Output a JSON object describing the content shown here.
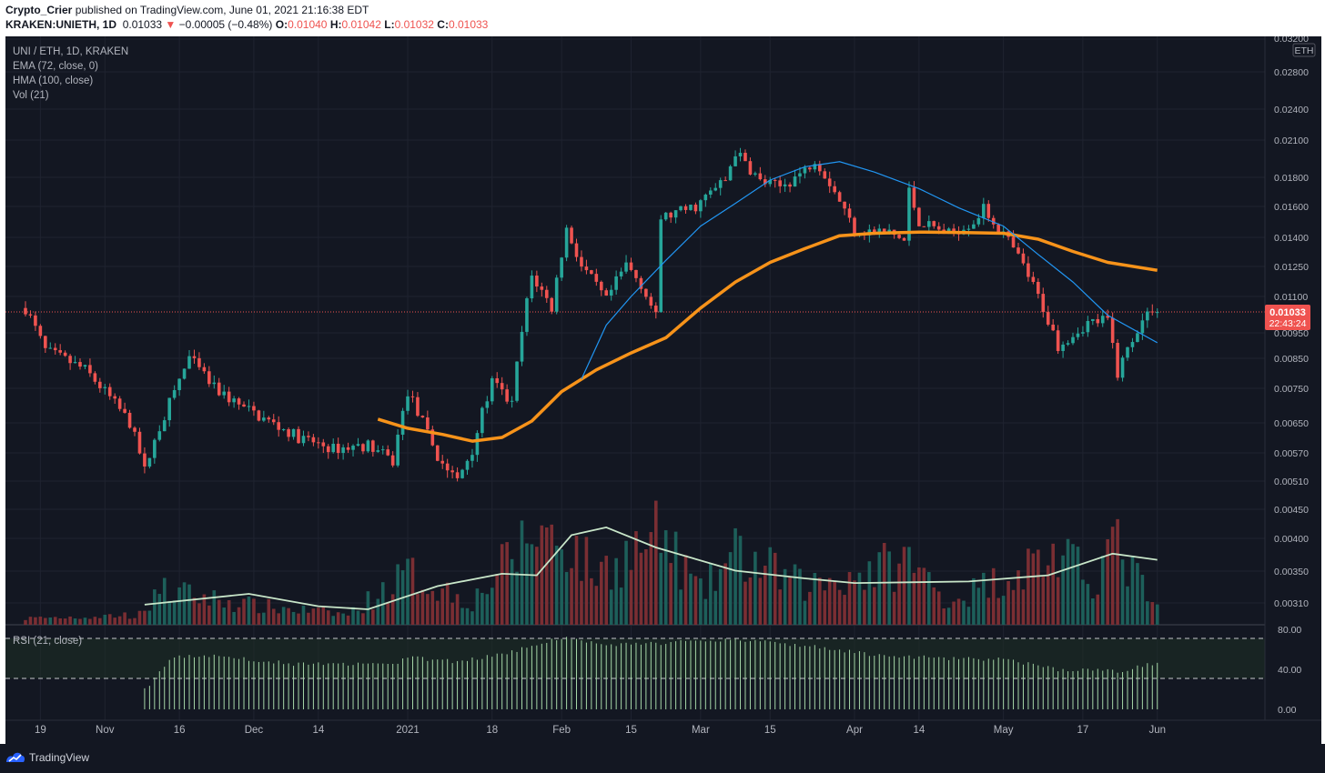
{
  "header": {
    "publisher": "Crypto_Crier",
    "published_text": "published on TradingView.com, June 01, 2021 21:16:38 EDT",
    "symbol": "KRAKEN:UNIETH, 1D",
    "last": "0.01033",
    "change_arrow": "▼",
    "change": "−0.00005 (−0.48%)",
    "o_label": "O:",
    "o": "0.01040",
    "h_label": "H:",
    "h": "0.01042",
    "l_label": "L:",
    "l": "0.01032",
    "c_label": "C:",
    "c": "0.01033"
  },
  "legend": {
    "title": "UNI / ETH, 1D, KRAKEN",
    "ema": "EMA (72, close, 0)",
    "hma": "HMA (100, close)",
    "vol": "Vol (21)",
    "rsi": "RSI (21, close)"
  },
  "footer": {
    "brand": "TradingView"
  },
  "colors": {
    "background": "#131722",
    "up": "#26a69a",
    "down": "#ef5350",
    "ema": "#f7931a",
    "hma": "#2196f3",
    "vol_ma": "#c8e6c9",
    "rsi": "#a5d6a7",
    "grid": "#232733"
  },
  "chart_data": {
    "type": "candlestick",
    "symbol": "UNI / ETH",
    "timeframe": "1D",
    "exchange": "KRAKEN",
    "price_axis_unit": "ETH",
    "price_ticks": [
      "0.03200",
      "0.02800",
      "0.02400",
      "0.02100",
      "0.01800",
      "0.01600",
      "0.01400",
      "0.01250",
      "0.01100",
      "0.00950",
      "0.00850",
      "0.00750",
      "0.00650",
      "0.00570",
      "0.00510",
      "0.00450",
      "0.00400",
      "0.00350",
      "0.00310"
    ],
    "price_tick_values": [
      0.032,
      0.028,
      0.024,
      0.021,
      0.018,
      0.016,
      0.014,
      0.0125,
      0.011,
      0.0095,
      0.0085,
      0.0075,
      0.0065,
      0.0057,
      0.0051,
      0.0045,
      0.004,
      0.0035,
      0.0031
    ],
    "x_ticks": [
      "19",
      "Nov",
      "16",
      "Dec",
      "14",
      "2021",
      "18",
      "Feb",
      "15",
      "Mar",
      "15",
      "Apr",
      "14",
      "May",
      "17",
      "Jun"
    ],
    "x_tick_dates": [
      "2020-10-19",
      "2020-11-01",
      "2020-11-16",
      "2020-12-01",
      "2020-12-14",
      "2021-01-01",
      "2021-01-18",
      "2021-02-01",
      "2021-02-15",
      "2021-03-01",
      "2021-03-15",
      "2021-04-01",
      "2021-04-14",
      "2021-05-01",
      "2021-05-17",
      "2021-06-01"
    ],
    "last_price_label": "0.01033",
    "countdown_label": "22:43:24",
    "rsi_ticks": [
      "80.00",
      "40.00",
      "0.00"
    ],
    "rsi_tick_values": [
      80,
      40,
      0
    ],
    "rsi_bands": [
      70,
      30
    ],
    "price_keypoints": [
      [
        "2020-10-16",
        0.0105
      ],
      [
        "2020-10-20",
        0.0088
      ],
      [
        "2020-10-28",
        0.0081
      ],
      [
        "2020-11-06",
        0.0065
      ],
      [
        "2020-11-09",
        0.0053
      ],
      [
        "2020-11-13",
        0.0067
      ],
      [
        "2020-11-18",
        0.0085
      ],
      [
        "2020-11-23",
        0.0075
      ],
      [
        "2020-11-29",
        0.0069
      ],
      [
        "2020-12-10",
        0.0061
      ],
      [
        "2020-12-17",
        0.0058
      ],
      [
        "2020-12-24",
        0.0059
      ],
      [
        "2020-12-29",
        0.0055
      ],
      [
        "2021-01-01",
        0.0074
      ],
      [
        "2021-01-07",
        0.0056
      ],
      [
        "2021-01-11",
        0.0051
      ],
      [
        "2021-01-14",
        0.0058
      ],
      [
        "2021-01-18",
        0.0077
      ],
      [
        "2021-01-22",
        0.007
      ],
      [
        "2021-01-26",
        0.012
      ],
      [
        "2021-01-30",
        0.0105
      ],
      [
        "2021-02-02",
        0.0145
      ],
      [
        "2021-02-05",
        0.0125
      ],
      [
        "2021-02-10",
        0.0108
      ],
      [
        "2021-02-14",
        0.0126
      ],
      [
        "2021-02-17",
        0.0116
      ],
      [
        "2021-02-20",
        0.0101
      ],
      [
        "2021-02-21",
        0.0152
      ],
      [
        "2021-02-28",
        0.016
      ],
      [
        "2021-03-06",
        0.0178
      ],
      [
        "2021-03-08",
        0.02
      ],
      [
        "2021-03-13",
        0.0177
      ],
      [
        "2021-03-17",
        0.0173
      ],
      [
        "2021-03-22",
        0.0185
      ],
      [
        "2021-03-24",
        0.0195
      ],
      [
        "2021-03-29",
        0.0164
      ],
      [
        "2021-04-01",
        0.0144
      ],
      [
        "2021-04-08",
        0.0143
      ],
      [
        "2021-04-11",
        0.0138
      ],
      [
        "2021-04-12",
        0.017
      ],
      [
        "2021-04-14",
        0.015
      ],
      [
        "2021-04-20",
        0.0142
      ],
      [
        "2021-04-25",
        0.015
      ],
      [
        "2021-04-27",
        0.0158
      ],
      [
        "2021-05-01",
        0.0142
      ],
      [
        "2021-05-05",
        0.0125
      ],
      [
        "2021-05-09",
        0.0105
      ],
      [
        "2021-05-12",
        0.009
      ],
      [
        "2021-05-18",
        0.0099
      ],
      [
        "2021-05-22",
        0.01
      ],
      [
        "2021-05-24",
        0.008
      ],
      [
        "2021-05-28",
        0.0097
      ],
      [
        "2021-05-31",
        0.0105
      ],
      [
        "2021-06-01",
        0.01033
      ]
    ],
    "ema_72": [
      [
        "2020-12-26",
        0.0066
      ],
      [
        "2021-01-01",
        0.00635
      ],
      [
        "2021-01-08",
        0.00618
      ],
      [
        "2021-01-14",
        0.006
      ],
      [
        "2021-01-20",
        0.0061
      ],
      [
        "2021-01-26",
        0.00655
      ],
      [
        "2021-02-01",
        0.0074
      ],
      [
        "2021-02-08",
        0.0081
      ],
      [
        "2021-02-15",
        0.0087
      ],
      [
        "2021-02-22",
        0.0093
      ],
      [
        "2021-03-01",
        0.0105
      ],
      [
        "2021-03-08",
        0.0117
      ],
      [
        "2021-03-15",
        0.0127
      ],
      [
        "2021-03-22",
        0.0134
      ],
      [
        "2021-03-29",
        0.0141
      ],
      [
        "2021-04-05",
        0.01425
      ],
      [
        "2021-04-14",
        0.01432
      ],
      [
        "2021-04-22",
        0.0143
      ],
      [
        "2021-05-01",
        0.01425
      ],
      [
        "2021-05-08",
        0.0139
      ],
      [
        "2021-05-15",
        0.01325
      ],
      [
        "2021-05-22",
        0.0127
      ],
      [
        "2021-06-01",
        0.0123
      ]
    ],
    "hma_100": [
      [
        "2021-02-05",
        0.0078
      ],
      [
        "2021-02-10",
        0.0098
      ],
      [
        "2021-02-15",
        0.011
      ],
      [
        "2021-02-22",
        0.0128
      ],
      [
        "2021-03-01",
        0.0147
      ],
      [
        "2021-03-08",
        0.0162
      ],
      [
        "2021-03-15",
        0.0178
      ],
      [
        "2021-03-22",
        0.0188
      ],
      [
        "2021-03-29",
        0.0192
      ],
      [
        "2021-04-05",
        0.0184
      ],
      [
        "2021-04-14",
        0.0172
      ],
      [
        "2021-04-22",
        0.0159
      ],
      [
        "2021-05-01",
        0.0147
      ],
      [
        "2021-05-08",
        0.0131
      ],
      [
        "2021-05-15",
        0.0117
      ],
      [
        "2021-05-22",
        0.0102
      ],
      [
        "2021-06-01",
        0.0091
      ]
    ],
    "volume_relative": [
      [
        "2020-10-16",
        0.05
      ],
      [
        "2020-11-09",
        0.08
      ],
      [
        "2020-11-11",
        0.28
      ],
      [
        "2020-12-01",
        0.15
      ],
      [
        "2020-12-20",
        0.08
      ],
      [
        "2021-01-01",
        0.4
      ],
      [
        "2021-01-14",
        0.18
      ],
      [
        "2021-01-27",
        0.75
      ],
      [
        "2021-02-02",
        0.65
      ],
      [
        "2021-02-08",
        0.4
      ],
      [
        "2021-02-21",
        0.7
      ],
      [
        "2021-03-01",
        0.25
      ],
      [
        "2021-03-08",
        0.55
      ],
      [
        "2021-03-22",
        0.3
      ],
      [
        "2021-04-12",
        0.5
      ],
      [
        "2021-04-20",
        0.18
      ],
      [
        "2021-05-11",
        0.55
      ],
      [
        "2021-05-19",
        0.35
      ],
      [
        "2021-05-23",
        0.65
      ],
      [
        "2021-06-01",
        0.12
      ]
    ],
    "volume_ma_relative": [
      [
        "2020-11-09",
        0.13
      ],
      [
        "2020-11-30",
        0.2
      ],
      [
        "2020-12-14",
        0.12
      ],
      [
        "2020-12-24",
        0.1
      ],
      [
        "2021-01-07",
        0.25
      ],
      [
        "2021-01-20",
        0.33
      ],
      [
        "2021-01-27",
        0.32
      ],
      [
        "2021-02-03",
        0.58
      ],
      [
        "2021-02-10",
        0.63
      ],
      [
        "2021-02-20",
        0.5
      ],
      [
        "2021-03-08",
        0.35
      ],
      [
        "2021-03-22",
        0.3
      ],
      [
        "2021-04-01",
        0.27
      ],
      [
        "2021-04-24",
        0.28
      ],
      [
        "2021-05-10",
        0.32
      ],
      [
        "2021-05-23",
        0.46
      ],
      [
        "2021-06-01",
        0.42
      ]
    ],
    "rsi": [
      [
        "2020-11-09",
        20
      ],
      [
        "2020-11-15",
        53
      ],
      [
        "2020-11-25",
        53
      ],
      [
        "2020-12-10",
        45
      ],
      [
        "2020-12-29",
        45
      ],
      [
        "2021-01-01",
        52
      ],
      [
        "2021-01-10",
        48
      ],
      [
        "2021-01-20",
        55
      ],
      [
        "2021-02-01",
        72
      ],
      [
        "2021-02-10",
        64
      ],
      [
        "2021-02-20",
        66
      ],
      [
        "2021-03-08",
        70
      ],
      [
        "2021-03-24",
        63
      ],
      [
        "2021-04-05",
        54
      ],
      [
        "2021-04-20",
        51
      ],
      [
        "2021-05-01",
        50
      ],
      [
        "2021-05-12",
        40
      ],
      [
        "2021-05-24",
        38
      ],
      [
        "2021-06-01",
        47
      ]
    ]
  }
}
